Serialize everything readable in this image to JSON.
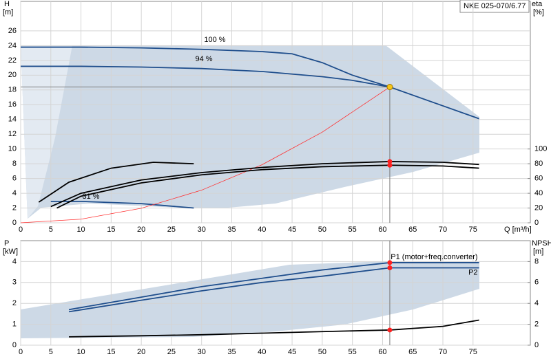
{
  "chart_data": [
    {
      "type": "line",
      "tag": "NKE 025-070/6.77",
      "x_label": "Q [m³/h]",
      "y_label": "H",
      "y_unit": "[m]",
      "y2_label": "eta",
      "y2_unit": "[%]",
      "xlim": [
        0,
        84.5
      ],
      "xticks": [
        0,
        5,
        10,
        15,
        20,
        25,
        30,
        35,
        40,
        45,
        50,
        55,
        60,
        65,
        70,
        75
      ],
      "ylim": [
        0,
        30
      ],
      "yticks": [
        0,
        2,
        4,
        6,
        8,
        10,
        12,
        14,
        16,
        18,
        20,
        22,
        24,
        26
      ],
      "y2lim": [
        0,
        300
      ],
      "y2ticks": [
        0,
        20,
        40,
        60,
        80,
        100
      ],
      "grid": true,
      "operating_point": {
        "x": 61.2,
        "y": 18.4,
        "color": "#f5c518"
      },
      "annotations": [
        "100 %",
        "94 %",
        "31 %"
      ],
      "series": [
        {
          "color": "#1f4e8c",
          "x": [
            0,
            10,
            20,
            30,
            40,
            45,
            50,
            55,
            61.2,
            76
          ],
          "values": [
            23.8,
            23.8,
            23.7,
            23.5,
            23.2,
            22.9,
            21.7,
            20,
            18.4,
            14.1
          ]
        },
        {
          "color": "#1f4e8c",
          "x": [
            0,
            10,
            20,
            30,
            40,
            50,
            55,
            61.2
          ],
          "values": [
            21.2,
            21.2,
            21.1,
            20.9,
            20.5,
            19.8,
            19.3,
            18.4
          ]
        },
        {
          "color": "#1f4e8c",
          "x": [
            5,
            10,
            20,
            28.7
          ],
          "values": [
            2.9,
            2.9,
            2.6,
            2.0
          ]
        },
        {
          "color": "#ff3030",
          "x": [
            0,
            10,
            20,
            30,
            40,
            50,
            61.2
          ],
          "values": [
            0,
            0.49,
            1.97,
            4.42,
            7.86,
            12.28,
            18.4
          ]
        },
        {
          "color": "#000000",
          "axis": "y2",
          "x": [
            5,
            10,
            20,
            30,
            40,
            50,
            61.2,
            70,
            76
          ],
          "values": [
            22,
            40,
            58,
            68,
            75,
            80,
            83,
            82,
            79
          ]
        },
        {
          "color": "#000000",
          "axis": "y2",
          "x": [
            6,
            10,
            20,
            30,
            40,
            50,
            61.2,
            70,
            76
          ],
          "values": [
            20,
            36,
            54,
            65,
            72,
            76,
            78,
            77,
            74
          ]
        },
        {
          "color": "#000000",
          "axis": "y2",
          "x": [
            3,
            8,
            15,
            22,
            28.7
          ],
          "values": [
            28,
            55,
            74,
            82,
            80
          ]
        }
      ]
    },
    {
      "type": "line",
      "y_label": "P",
      "y_unit": "[kW]",
      "y2_label": "NPSH",
      "y2_unit": "[m]",
      "xlim": [
        0,
        84.5
      ],
      "xticks": [
        0,
        5,
        10,
        15,
        20,
        25,
        30,
        35,
        40,
        45,
        50,
        55,
        60,
        65,
        70,
        75
      ],
      "ylim": [
        0,
        5
      ],
      "yticks": [
        0,
        1,
        2,
        3,
        4
      ],
      "y2lim": [
        0,
        10
      ],
      "y2ticks": [
        0,
        2,
        4,
        6,
        8
      ],
      "grid": true,
      "operating_point": {
        "x": 61.2
      },
      "series": [
        {
          "name": "P1 (motor+freq.converter)",
          "color": "#1f4e8c",
          "x": [
            8,
            20,
            30,
            40,
            50,
            61.2,
            76
          ],
          "values": [
            1.7,
            2.3,
            2.8,
            3.2,
            3.6,
            3.95,
            3.95
          ]
        },
        {
          "name": "P2",
          "color": "#1f4e8c",
          "x": [
            8,
            20,
            30,
            40,
            50,
            61.2,
            76
          ],
          "values": [
            1.6,
            2.15,
            2.6,
            3.0,
            3.3,
            3.7,
            3.7
          ]
        },
        {
          "color": "#000000",
          "axis": "y2",
          "x": [
            8,
            20,
            30,
            40,
            50,
            61.2,
            70,
            76
          ],
          "values": [
            0.8,
            0.9,
            1.0,
            1.15,
            1.3,
            1.45,
            1.8,
            2.4
          ]
        }
      ]
    }
  ]
}
